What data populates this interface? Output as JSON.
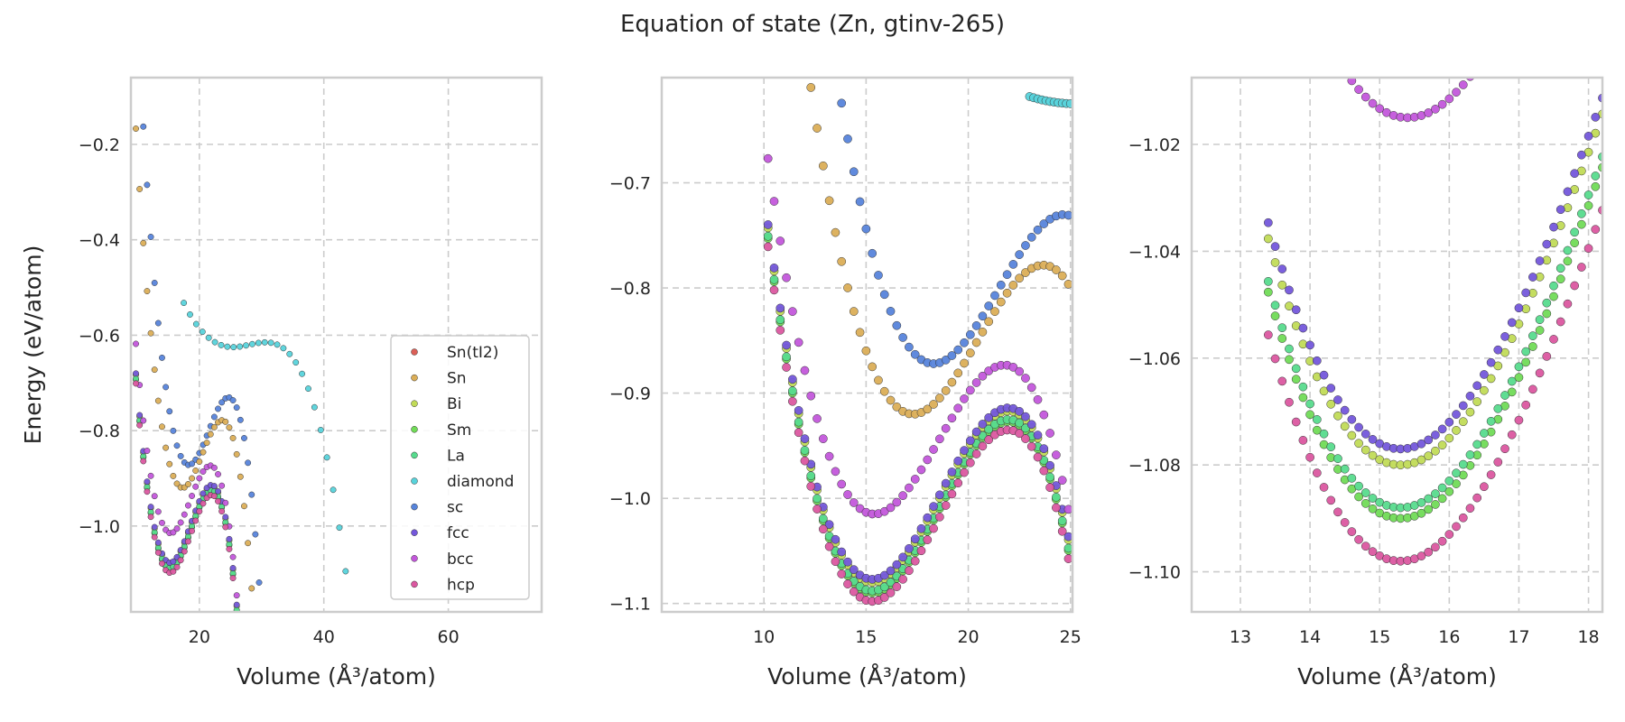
{
  "figure": {
    "title": "Equation of state (Zn, gtinv-265)"
  },
  "legend": {
    "entries": [
      "Sn(tI2)",
      "Sn",
      "Bi",
      "Sm",
      "La",
      "diamond",
      "sc",
      "fcc",
      "bcc",
      "hcp"
    ],
    "placement": "lower-right",
    "colors": {
      "Sn(tI2)": "#db5f57",
      "Sn": "#dbae57",
      "Bi": "#c1db57",
      "Sm": "#71db57",
      "La": "#57db8d",
      "diamond": "#57d3db",
      "sc": "#5784db",
      "fcc": "#7457db",
      "bcc": "#c357db",
      "hcp": "#db57a0"
    }
  },
  "chart_data": [
    {
      "type": "scatter",
      "xlabel": "Volume (Å³/atom)",
      "ylabel": "Energy (eV/atom)",
      "xlim": [
        9,
        75
      ],
      "ylim": [
        -1.18,
        -0.06
      ],
      "xticks": [
        20,
        40,
        60
      ],
      "xtick_labels": [
        "20",
        "40",
        "60"
      ],
      "yticks": [
        -1.0,
        -0.8,
        -0.6,
        -0.4,
        -0.2
      ],
      "ytick_labels": [
        "−1.0",
        "−0.8",
        "−0.6",
        "−0.4",
        "−0.2"
      ],
      "grid": true,
      "series": [
        {
          "name": "diamond",
          "v0": 25.4,
          "e0": -0.625,
          "b": 0.0011,
          "c": 0.00014,
          "range": [
            17.5,
            74
          ],
          "step": 1.0
        },
        {
          "name": "sc",
          "v0": 18.3,
          "e0": -0.872,
          "b": 0.0105,
          "c": 0.0011,
          "range": [
            9.8,
            54.5
          ],
          "step": 0.6
        },
        {
          "name": "Sn",
          "v0": 17.3,
          "e0": -0.92,
          "b": 0.0105,
          "c": 0.0011,
          "range": [
            9.8,
            52
          ],
          "step": 0.6
        },
        {
          "name": "Bi",
          "v0": 15.3,
          "e0": -1.08,
          "b": 0.011,
          "c": 0.0011,
          "range": [
            9.8,
            50
          ],
          "step": 0.6
        },
        {
          "name": "Sm",
          "v0": 15.3,
          "e0": -1.09,
          "b": 0.011,
          "c": 0.0011,
          "range": [
            9.8,
            49
          ],
          "step": 0.6
        },
        {
          "name": "La",
          "v0": 15.3,
          "e0": -1.088,
          "b": 0.011,
          "c": 0.0011,
          "range": [
            9.8,
            49
          ],
          "step": 0.6
        },
        {
          "name": "fcc",
          "v0": 15.3,
          "e0": -1.077,
          "b": 0.011,
          "c": 0.0011,
          "range": [
            9.8,
            47
          ],
          "step": 0.6
        },
        {
          "name": "bcc",
          "v0": 15.4,
          "e0": -1.015,
          "b": 0.0105,
          "c": 0.0011,
          "range": [
            9.8,
            46
          ],
          "step": 0.6
        },
        {
          "name": "hcp",
          "v0": 15.3,
          "e0": -1.098,
          "b": 0.011,
          "c": 0.0011,
          "range": [
            9.8,
            48
          ],
          "step": 0.6
        }
      ]
    },
    {
      "type": "scatter",
      "xlabel": "Volume (Å³/atom)",
      "ylabel": "",
      "xlim": [
        5,
        25.1
      ],
      "ylim": [
        -1.108,
        -0.6
      ],
      "xticks": [
        10,
        15,
        20,
        25
      ],
      "xtick_labels": [
        "10",
        "15",
        "20",
        "25"
      ],
      "yticks": [
        -1.1,
        -1.0,
        -0.9,
        -0.8,
        -0.7
      ],
      "ytick_labels": [
        "−1.1",
        "−1.0",
        "−0.9",
        "−0.8",
        "−0.7"
      ],
      "grid": true,
      "series": [
        {
          "name": "diamond",
          "v0": 25.4,
          "e0": -0.625,
          "b": 0.0011,
          "c": 0.00014,
          "range": [
            23,
            25.1
          ],
          "step": 0.2
        },
        {
          "name": "sc",
          "v0": 18.3,
          "e0": -0.872,
          "b": 0.0105,
          "c": 0.0011,
          "range": [
            10.2,
            25.1
          ],
          "step": 0.3
        },
        {
          "name": "Sn",
          "v0": 17.3,
          "e0": -0.92,
          "b": 0.0105,
          "c": 0.0011,
          "range": [
            10.2,
            25.1
          ],
          "step": 0.3
        },
        {
          "name": "Bi",
          "v0": 15.3,
          "e0": -1.08,
          "b": 0.011,
          "c": 0.0011,
          "range": [
            10.2,
            25.1
          ],
          "step": 0.3
        },
        {
          "name": "Sm",
          "v0": 15.3,
          "e0": -1.09,
          "b": 0.011,
          "c": 0.0011,
          "range": [
            10.2,
            25.1
          ],
          "step": 0.3
        },
        {
          "name": "La",
          "v0": 15.3,
          "e0": -1.088,
          "b": 0.011,
          "c": 0.0011,
          "range": [
            10.2,
            25.1
          ],
          "step": 0.3
        },
        {
          "name": "fcc",
          "v0": 15.3,
          "e0": -1.077,
          "b": 0.011,
          "c": 0.0011,
          "range": [
            10.2,
            25.1
          ],
          "step": 0.3
        },
        {
          "name": "bcc",
          "v0": 15.4,
          "e0": -1.015,
          "b": 0.0105,
          "c": 0.0011,
          "range": [
            10.2,
            25.1
          ],
          "step": 0.3
        },
        {
          "name": "hcp",
          "v0": 15.3,
          "e0": -1.098,
          "b": 0.011,
          "c": 0.0011,
          "range": [
            10.2,
            25.1
          ],
          "step": 0.3
        }
      ]
    },
    {
      "type": "scatter",
      "xlabel": "Volume (Å³/atom)",
      "ylabel": "",
      "xlim": [
        12.3,
        18.2
      ],
      "ylim": [
        -1.1075,
        -1.0075
      ],
      "xticks": [
        13,
        14,
        15,
        16,
        17,
        18
      ],
      "xtick_labels": [
        "13",
        "14",
        "15",
        "16",
        "17",
        "18"
      ],
      "yticks": [
        -1.1,
        -1.08,
        -1.06,
        -1.04,
        -1.02
      ],
      "ytick_labels": [
        "−1.10",
        "−1.08",
        "−1.06",
        "−1.04",
        "−1.02"
      ],
      "grid": true,
      "series": [
        {
          "name": "sc",
          "v0": 18.3,
          "e0": -0.872,
          "b": 0.0105,
          "c": 0.0011,
          "range": [
            12.3,
            18.2
          ],
          "step": 0.1
        },
        {
          "name": "Bi",
          "v0": 15.3,
          "e0": -1.08,
          "b": 0.011,
          "c": 0.0011,
          "range": [
            13.4,
            18.2
          ],
          "step": 0.1
        },
        {
          "name": "Sm",
          "v0": 15.3,
          "e0": -1.09,
          "b": 0.011,
          "c": 0.0011,
          "range": [
            13.4,
            18.2
          ],
          "step": 0.1
        },
        {
          "name": "La",
          "v0": 15.3,
          "e0": -1.088,
          "b": 0.011,
          "c": 0.0011,
          "range": [
            13.4,
            18.2
          ],
          "step": 0.1
        },
        {
          "name": "fcc",
          "v0": 15.3,
          "e0": -1.077,
          "b": 0.011,
          "c": 0.0011,
          "range": [
            13.4,
            18.2
          ],
          "step": 0.1
        },
        {
          "name": "bcc",
          "v0": 15.4,
          "e0": -1.015,
          "b": 0.0105,
          "c": 0.0011,
          "range": [
            13.4,
            18.2
          ],
          "step": 0.1
        },
        {
          "name": "hcp",
          "v0": 15.3,
          "e0": -1.098,
          "b": 0.011,
          "c": 0.0011,
          "range": [
            13.4,
            18.2
          ],
          "step": 0.1
        }
      ]
    }
  ]
}
